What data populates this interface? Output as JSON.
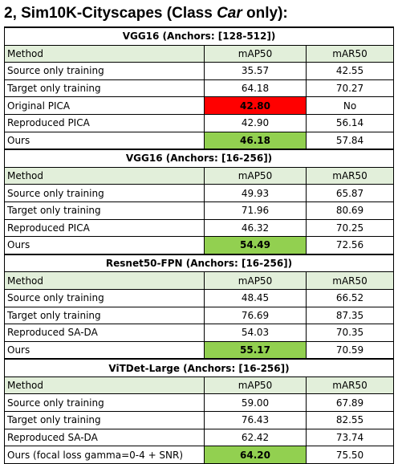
{
  "title": {
    "prefix": "2, Sim10K-Cityscapes (Class ",
    "italic": "Car",
    "suffix": " only):"
  },
  "columns": [
    "Method",
    "mAP50",
    "mAR50"
  ],
  "colors": {
    "header_bg": "#e2efda",
    "highlight_red": "#ff0000",
    "highlight_green": "#92d050"
  },
  "sections": [
    {
      "title": "VGG16 (Anchors: [128-512])",
      "rows": [
        {
          "method": "Source only training",
          "map50": "35.57",
          "mar50": "42.55"
        },
        {
          "method": "Target only training",
          "map50": "64.18",
          "mar50": "70.27"
        },
        {
          "method": "Original PICA",
          "map50": "42.80",
          "mar50": "No"
        },
        {
          "method": "Reproduced PICA",
          "map50": "42.90",
          "mar50": "56.14"
        },
        {
          "method": "Ours",
          "map50": "46.18",
          "mar50": "57.84"
        }
      ]
    },
    {
      "title": "VGG16 (Anchors: [16-256])",
      "rows": [
        {
          "method": "Source only training",
          "map50": "49.93",
          "mar50": "65.87"
        },
        {
          "method": "Target only training",
          "map50": "71.96",
          "mar50": "80.69"
        },
        {
          "method": "Reproduced PICA",
          "map50": "46.32",
          "mar50": "70.25"
        },
        {
          "method": "Ours",
          "map50": "54.49",
          "mar50": "72.56"
        }
      ]
    },
    {
      "title": "Resnet50-FPN (Anchors: [16-256])",
      "rows": [
        {
          "method": "Source only training",
          "map50": "48.45",
          "mar50": "66.52"
        },
        {
          "method": "Target only training",
          "map50": "76.69",
          "mar50": "87.35"
        },
        {
          "method": "Reproduced SA-DA",
          "map50": "54.03",
          "mar50": "70.35"
        },
        {
          "method": "Ours",
          "map50": "55.17",
          "mar50": "70.59"
        }
      ]
    },
    {
      "title": "ViTDet-Large (Anchors: [16-256])",
      "rows": [
        {
          "method": "Source only training",
          "map50": "59.00",
          "mar50": "67.89"
        },
        {
          "method": "Target only training",
          "map50": "76.43",
          "mar50": "82.55"
        },
        {
          "method": "Reproduced SA-DA",
          "map50": "62.42",
          "mar50": "73.74"
        },
        {
          "method": "Ours (focal loss gamma=0-4 + SNR)",
          "map50": "64.20",
          "mar50": "75.50"
        }
      ]
    }
  ]
}
